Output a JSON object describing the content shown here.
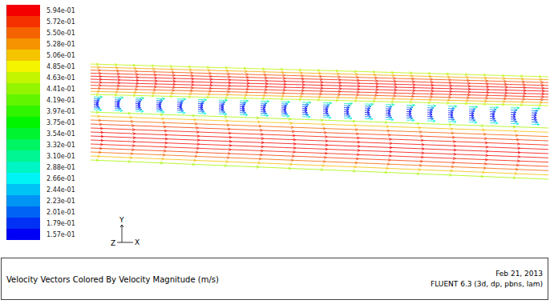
{
  "chart_data": {
    "type": "vector_field",
    "title": "Velocity Vectors Colored By Velocity Magnitude (m/s)",
    "date": "Feb 21, 2013",
    "software": "FLUENT 6.3 (3d, dp, pbns, lam)",
    "x_label": "X",
    "y_label": "Y",
    "z_label": "Z",
    "colorbar_range": [
      0.157,
      0.594
    ],
    "colorbar_ticks": [
      {
        "value": 0.594,
        "label": "5.94e-01"
      },
      {
        "value": 0.572,
        "label": "5.72e-01"
      },
      {
        "value": 0.55,
        "label": "5.50e-01"
      },
      {
        "value": 0.528,
        "label": "5.28e-01"
      },
      {
        "value": 0.506,
        "label": "5.06e-01"
      },
      {
        "value": 0.485,
        "label": "4.85e-01"
      },
      {
        "value": 0.463,
        "label": "4.63e-01"
      },
      {
        "value": 0.441,
        "label": "4.41e-01"
      },
      {
        "value": 0.419,
        "label": "4.19e-01"
      },
      {
        "value": 0.397,
        "label": "3.97e-01"
      },
      {
        "value": 0.375,
        "label": "3.75e-01"
      },
      {
        "value": 0.354,
        "label": "3.54e-01"
      },
      {
        "value": 0.332,
        "label": "3.32e-01"
      },
      {
        "value": 0.31,
        "label": "3.10e-01"
      },
      {
        "value": 0.288,
        "label": "2.88e-01"
      },
      {
        "value": 0.266,
        "label": "2.66e-01"
      },
      {
        "value": 0.244,
        "label": "2.44e-01"
      },
      {
        "value": 0.223,
        "label": "2.23e-01"
      },
      {
        "value": 0.201,
        "label": "2.01e-01"
      },
      {
        "value": 0.179,
        "label": "1.79e-01"
      },
      {
        "value": 0.157,
        "label": "1.57e-01"
      }
    ],
    "field": [
      {
        "values": [
          0.46,
          0.52,
          0.56,
          0.58,
          0.59,
          0.594,
          0.59,
          0.58,
          0.56,
          0.52,
          0.46
        ]
      },
      {
        "values": [
          0.3,
          0.22,
          0.18,
          0.16,
          0.157,
          0.17,
          0.21,
          0.28
        ]
      },
      {
        "values": [
          0.45,
          0.51,
          0.55,
          0.57,
          0.585,
          0.59,
          0.594,
          0.59,
          0.585,
          0.57,
          0.55,
          0.51,
          0.45
        ]
      }
    ]
  }
}
